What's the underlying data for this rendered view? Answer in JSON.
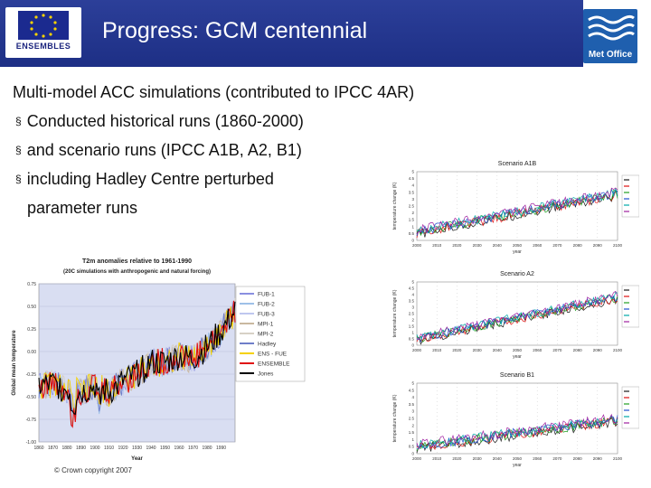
{
  "header": {
    "title": "Progress: GCM centennial",
    "ensembles_logo_text": "ENSEMBLES",
    "metoffice_logo_text": "Met Office"
  },
  "content": {
    "heading": "Multi-model ACC simulations (contributed to IPCC 4AR)",
    "bullets": [
      "Conducted historical runs (1860-2000)",
      "and scenario runs (IPCC A1B, A2, B1)",
      "including Hadley Centre perturbed"
    ],
    "bullet_continuation": "parameter runs"
  },
  "colors": {
    "header_bg": "#233797",
    "metoffice_bg": "#1f5fae",
    "chart_bg": "#d9def2"
  },
  "chart_data": [
    {
      "type": "line",
      "title": "T2m anomalies relative to 1961-1990",
      "subtitle": "(20C simulations with anthropogenic and natural forcing)",
      "xlabel": "Year",
      "ylabel": "Global mean temperature",
      "xlim": [
        1860,
        2000
      ],
      "ylim": [
        -1.0,
        0.75
      ],
      "xticks": [
        "1860",
        "1870",
        "1880",
        "1890",
        "1900",
        "1910",
        "1920",
        "1930",
        "1940",
        "1950",
        "1960",
        "1970",
        "1980",
        "1990"
      ],
      "yticks": [
        "0.75",
        "0.50",
        "0.25",
        "0.00",
        "-0.25",
        "-0.50",
        "-0.75",
        "-1.00"
      ],
      "legend_position": "right",
      "series": [
        {
          "name": "FUB-1",
          "color": "#8a8fe0"
        },
        {
          "name": "FUB-2",
          "color": "#9ec0e8"
        },
        {
          "name": "FUB-3",
          "color": "#bfc7ef"
        },
        {
          "name": "MPI-1",
          "color": "#c9b8a0"
        },
        {
          "name": "MPI-2",
          "color": "#d7d1c6"
        },
        {
          "name": "Hadley",
          "color": "#6f7ec9"
        },
        {
          "name": "ENS - FUE",
          "color": "#f5d100"
        },
        {
          "name": "ENSEMBLE",
          "color": "#e01010"
        },
        {
          "name": "Jones",
          "color": "#000000"
        }
      ],
      "trend": {
        "x": [
          1860,
          1870,
          1880,
          1890,
          1900,
          1910,
          1920,
          1930,
          1940,
          1950,
          1960,
          1970,
          1980,
          1990,
          2000
        ],
        "y": [
          -0.38,
          -0.36,
          -0.42,
          -0.45,
          -0.38,
          -0.45,
          -0.33,
          -0.25,
          -0.12,
          -0.12,
          -0.05,
          -0.08,
          0.05,
          0.22,
          0.45
        ]
      }
    },
    {
      "type": "line",
      "title": "Scenario A1B",
      "xlabel": "year",
      "ylabel": "temperature change (K)",
      "xlim": [
        2000,
        2100
      ],
      "ylim": [
        0,
        5
      ],
      "xticks": [
        "2000",
        "2010",
        "2020",
        "2030",
        "2040",
        "2050",
        "2060",
        "2070",
        "2080",
        "2090",
        "2100"
      ],
      "yticks": [
        "5",
        "4.5",
        "4",
        "3.5",
        "3",
        "2.5",
        "2",
        "1.5",
        "1",
        "0.5",
        "0"
      ],
      "trend": {
        "x": [
          2000,
          2100
        ],
        "y": [
          0.6,
          3.4
        ]
      }
    },
    {
      "type": "line",
      "title": "Scenario A2",
      "xlabel": "year",
      "ylabel": "temperature change (K)",
      "xlim": [
        2000,
        2100
      ],
      "ylim": [
        0,
        5
      ],
      "xticks": [
        "2000",
        "2010",
        "2020",
        "2030",
        "2040",
        "2050",
        "2060",
        "2070",
        "2080",
        "2090",
        "2100"
      ],
      "yticks": [
        "5",
        "4.5",
        "4",
        "3.5",
        "3",
        "2.5",
        "2",
        "1.5",
        "1",
        "0.5",
        "0"
      ],
      "trend": {
        "x": [
          2000,
          2100
        ],
        "y": [
          0.5,
          3.8
        ]
      }
    },
    {
      "type": "line",
      "title": "Scenario B1",
      "xlabel": "year",
      "ylabel": "temperature change (K)",
      "xlim": [
        2000,
        2100
      ],
      "ylim": [
        0,
        5
      ],
      "xticks": [
        "2000",
        "2010",
        "2020",
        "2030",
        "2040",
        "2050",
        "2060",
        "2070",
        "2080",
        "2090",
        "2100"
      ],
      "yticks": [
        "5",
        "4.5",
        "4",
        "3.5",
        "3",
        "2.5",
        "2",
        "1.5",
        "1",
        "0.5",
        "0"
      ],
      "trend": {
        "x": [
          2000,
          2100
        ],
        "y": [
          0.5,
          2.4
        ]
      }
    }
  ],
  "copyright": "© Crown copyright 2007"
}
